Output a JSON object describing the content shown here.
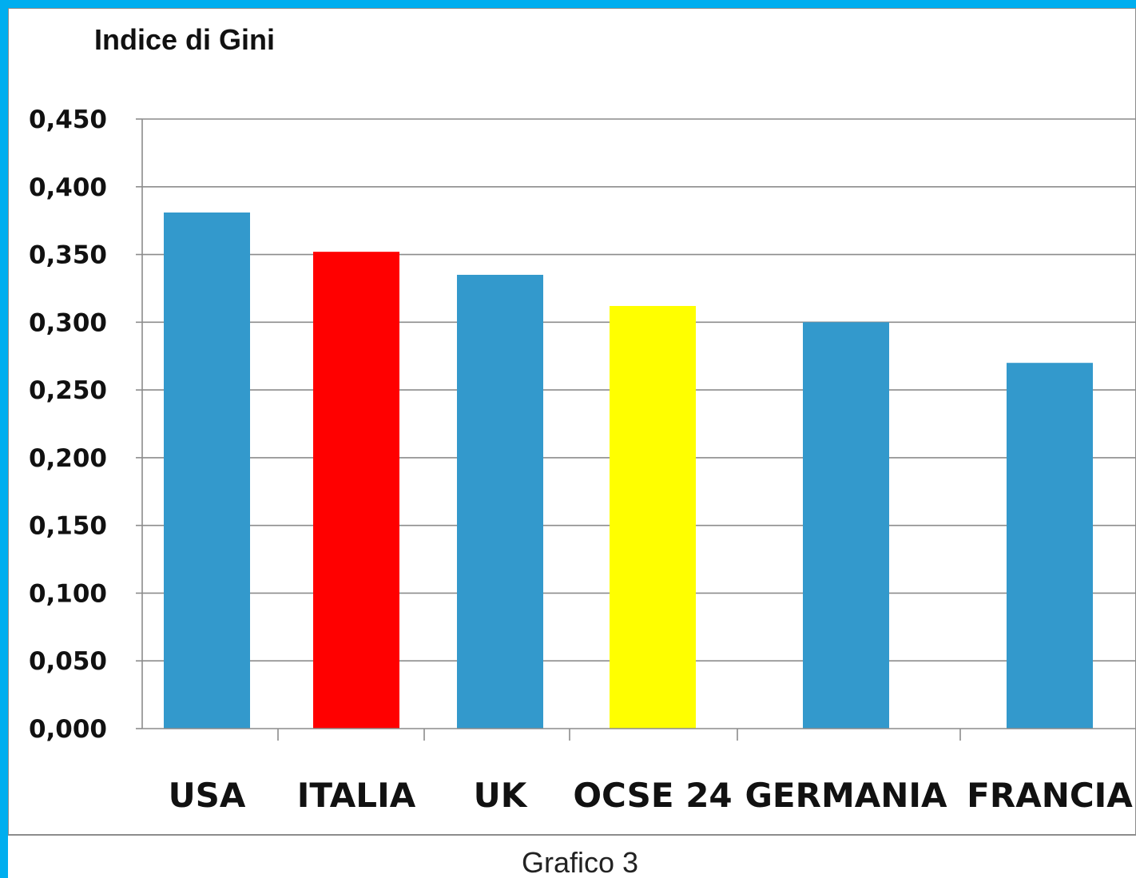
{
  "chart_data": {
    "type": "bar",
    "title": "Indice di Gini",
    "caption": "Grafico 3",
    "categories": [
      "USA",
      "ITALIA",
      "UK",
      "OCSE 24",
      "GERMANIA",
      "FRANCIA"
    ],
    "values": [
      0.381,
      0.352,
      0.335,
      0.312,
      0.3,
      0.27
    ],
    "bar_colors": [
      "#3399CC",
      "#FF0000",
      "#3399CC",
      "#FFFF00",
      "#3399CC",
      "#3399CC"
    ],
    "ylim": [
      0,
      0.45
    ],
    "yticks": [
      0,
      0.05,
      0.1,
      0.15,
      0.2,
      0.25,
      0.3,
      0.35,
      0.4,
      0.45
    ],
    "ytick_labels": [
      "0,000",
      "0,050",
      "0,100",
      "0,150",
      "0,200",
      "0,250",
      "0,300",
      "0,350",
      "0,400",
      "0,450"
    ],
    "grid": true,
    "legend": "none",
    "xlabel": "",
    "ylabel": ""
  },
  "colors": {
    "frame_border": "#00AEEF",
    "background": "#FFFFFF",
    "gridline": "#8C8C8C"
  }
}
